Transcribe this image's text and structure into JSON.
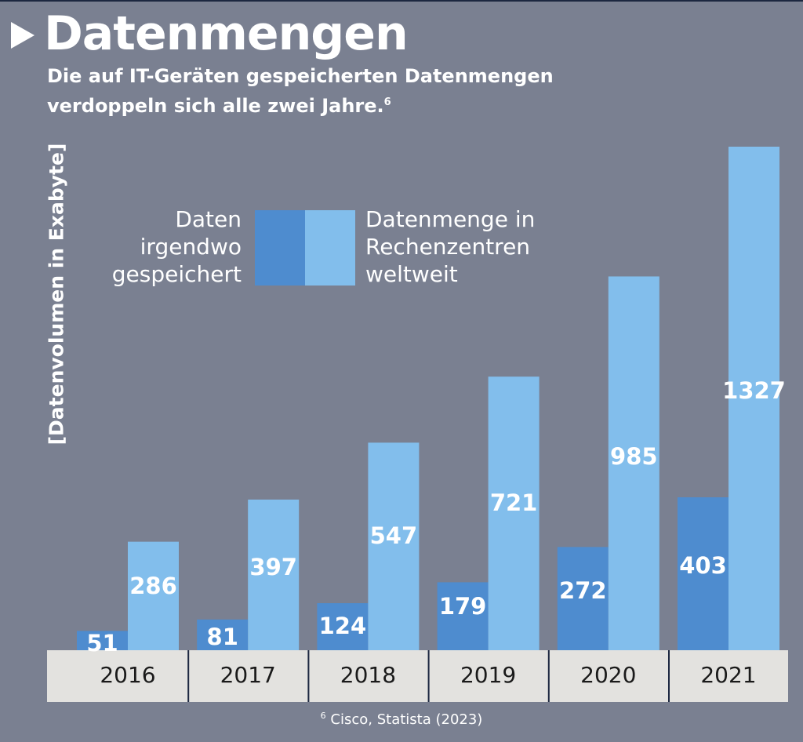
{
  "header": {
    "title": "Datenmengen",
    "subtitle_line1": "Die auf IT-Geräten gespeicherten Datenmengen",
    "subtitle_line2": "verdoppeln sich alle zwei Jahre.",
    "subtitle_footnote_ref": "6"
  },
  "legend": {
    "left_lines": [
      "Daten",
      "irgendwo",
      "gespeichert"
    ],
    "right_lines": [
      "Datenmenge in",
      "Rechenzentren",
      "weltweit"
    ]
  },
  "footnote": {
    "ref": "6",
    "text": "Cisco, Statista (2023)"
  },
  "colors": {
    "background": "#7a8091",
    "series_dark": "#4e8ccf",
    "series_light": "#82beec",
    "axis_band": "#e3e2df",
    "axis_divider": "#1c2740",
    "year_text": "#1a1a1a"
  },
  "chart_data": {
    "type": "bar",
    "title": "Datenmengen",
    "subtitle": "Die auf IT-Geräten gespeicherten Datenmengen verdoppeln sich alle zwei Jahre.",
    "xlabel": "",
    "ylabel": "[Datenvolumen in Exabyte]",
    "categories": [
      "2016",
      "2017",
      "2018",
      "2019",
      "2020",
      "2021"
    ],
    "series": [
      {
        "name": "Daten irgendwo gespeichert",
        "values": [
          51,
          81,
          124,
          179,
          272,
          403
        ]
      },
      {
        "name": "Datenmenge in Rechenzentren weltweit",
        "values": [
          286,
          397,
          547,
          721,
          985,
          1327
        ]
      }
    ],
    "ylim": [
      0,
      1327
    ],
    "grid": false,
    "legend_position": "top-center",
    "data_labels": true
  }
}
